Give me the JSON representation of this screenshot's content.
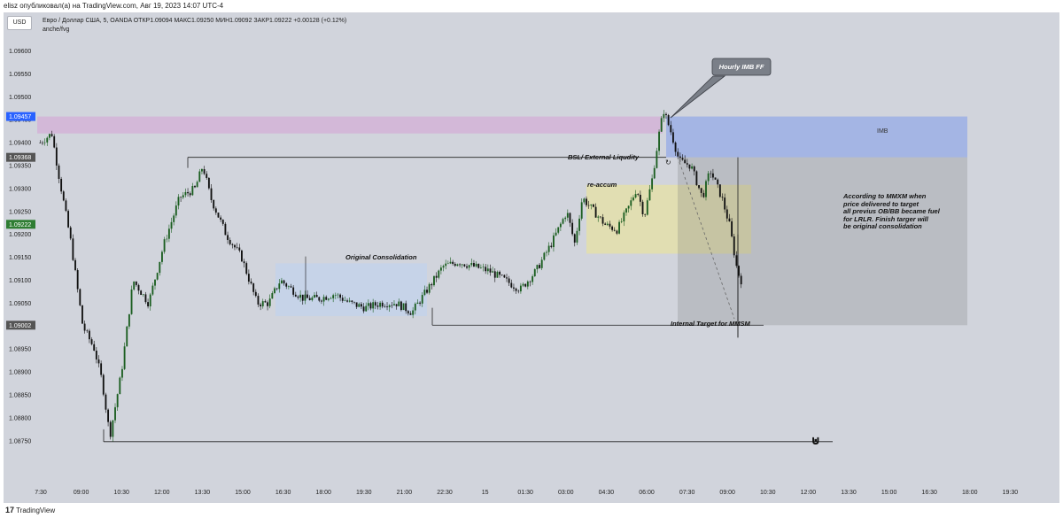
{
  "publisher": "elisz опубликовал(а) на TradingView.com, Авг 19, 2023 14:07 UTC-4",
  "currency_badge": "USD",
  "symbol_line": "Евро / Доллар США, 5, OANDA  ОТКР1.09094  МАКС1.09250  МИН1.09092  ЗАКР1.09222  +0.00128 (+0.12%)",
  "indicator_line": "anche/fvg",
  "brand": "TradingView",
  "colors": {
    "up": "#1b5e20",
    "down": "#111111",
    "price_tag_blue": "#2962ff",
    "price_tag_green": "#2e7d32",
    "price_tag_grey": "#555555"
  },
  "chart_data": {
    "type": "candlestick",
    "timeframe": "5",
    "symbol": "Евро / Доллар США",
    "ylim": [
      1.0872,
      1.0966
    ],
    "y_ticks": [
      "1.09600",
      "1.09550",
      "1.09500",
      "1.09450",
      "1.09400",
      "1.09350",
      "1.09300",
      "1.09250",
      "1.09200",
      "1.09150",
      "1.09100",
      "1.09050",
      "1.09000",
      "1.08950",
      "1.08900",
      "1.08850",
      "1.08800",
      "1.08750"
    ],
    "y_tick_values": [
      1.096,
      1.0955,
      1.095,
      1.0945,
      1.094,
      1.0935,
      1.093,
      1.0925,
      1.092,
      1.0915,
      1.091,
      1.0905,
      1.09,
      1.0895,
      1.089,
      1.0885,
      1.088,
      1.0875
    ],
    "x_ticks": [
      "7:30",
      "09:00",
      "10:30",
      "12:00",
      "13:30",
      "15:00",
      "16:30",
      "18:00",
      "19:30",
      "21:00",
      "22:30",
      "15",
      "01:30",
      "03:00",
      "04:30",
      "06:00",
      "07:30",
      "09:00",
      "10:30",
      "12:00",
      "13:30",
      "15:00",
      "16:30",
      "18:00",
      "19:30"
    ],
    "x_tick_index": [
      0,
      18,
      36,
      54,
      72,
      90,
      108,
      126,
      144,
      162,
      180,
      198,
      216,
      234,
      252,
      270,
      288,
      306,
      324,
      342,
      360,
      378,
      396,
      414,
      432
    ],
    "price_tags": [
      {
        "label": "1.09457",
        "value": 1.09457,
        "color": "#2962ff"
      },
      {
        "label": "1.09368",
        "value": 1.09368,
        "color": "#555555"
      },
      {
        "label": "1.09222",
        "value": 1.09222,
        "color": "#2e7d32"
      },
      {
        "label": "1.09002",
        "value": 1.09002,
        "color": "#555555"
      }
    ],
    "anchors": [
      [
        0,
        1.094
      ],
      [
        3,
        1.0942
      ],
      [
        5,
        1.0932
      ],
      [
        8,
        1.0918
      ],
      [
        11,
        1.09
      ],
      [
        14,
        1.0895
      ],
      [
        16,
        1.0888
      ],
      [
        18,
        1.0876
      ],
      [
        21,
        1.089
      ],
      [
        24,
        1.091
      ],
      [
        28,
        1.0905
      ],
      [
        32,
        1.0918
      ],
      [
        36,
        1.0928
      ],
      [
        40,
        1.093
      ],
      [
        42,
        1.0935
      ],
      [
        44,
        1.0928
      ],
      [
        48,
        1.092
      ],
      [
        52,
        1.0915
      ],
      [
        56,
        1.0905
      ],
      [
        59,
        1.0905
      ],
      [
        62,
        1.091
      ],
      [
        65,
        1.0908
      ],
      [
        68,
        1.0906
      ],
      [
        72,
        1.0906
      ],
      [
        76,
        1.0907
      ],
      [
        80,
        1.0905
      ],
      [
        84,
        1.0904
      ],
      [
        88,
        1.0905
      ],
      [
        92,
        1.0905
      ],
      [
        96,
        1.0903
      ],
      [
        100,
        1.0908
      ],
      [
        104,
        1.0913
      ],
      [
        108,
        1.0914
      ],
      [
        112,
        1.0913
      ],
      [
        116,
        1.0912
      ],
      [
        120,
        1.091
      ],
      [
        124,
        1.0908
      ],
      [
        128,
        1.0912
      ],
      [
        132,
        1.0918
      ],
      [
        136,
        1.0925
      ],
      [
        138,
        1.0918
      ],
      [
        140,
        1.0928
      ],
      [
        143,
        1.0925
      ],
      [
        146,
        1.0922
      ],
      [
        149,
        1.0921
      ],
      [
        152,
        1.0926
      ],
      [
        154,
        1.093
      ],
      [
        156,
        1.0924
      ],
      [
        158,
        1.0932
      ],
      [
        160,
        1.0943
      ],
      [
        161,
        1.0947
      ],
      [
        163,
        1.0942
      ],
      [
        165,
        1.0936
      ],
      [
        168,
        1.0935
      ],
      [
        171,
        1.0928
      ],
      [
        173,
        1.0934
      ],
      [
        176,
        1.0928
      ],
      [
        178,
        1.0922
      ],
      [
        180,
        1.0912
      ],
      [
        181,
        1.091
      ]
    ],
    "zones": [
      {
        "name": "imb-zone-pink",
        "x0": 0,
        "x1": 156,
        "y0": 1.0942,
        "y1": 1.09457,
        "color": "rgba(214,160,214,0.55)"
      },
      {
        "name": "imb-zone-blue",
        "x0": 161,
        "x1": 234,
        "y0": 1.09368,
        "y1": 1.09457,
        "color": "rgba(120,150,235,0.5)"
      },
      {
        "name": "original-consolidation-zone",
        "x0": 72,
        "x1": 112,
        "y0": 1.09022,
        "y1": 1.09137,
        "color": "rgba(190,210,240,0.6)"
      },
      {
        "name": "re-accum-zone",
        "x0": 141,
        "x1": 181,
        "y0": 1.09158,
        "y1": 1.09308,
        "color": "rgba(235,228,150,0.6)"
      },
      {
        "name": "target-grey-zone",
        "x0": 164,
        "x1": 234,
        "y0": 1.09002,
        "y1": 1.09368,
        "color": "rgba(120,120,120,0.25)"
      }
    ],
    "levels": [
      {
        "name": "bsl-level",
        "x0": 42,
        "x1": 161,
        "y": 1.09368
      },
      {
        "name": "internal-target-level",
        "x0": 104,
        "x1": 184,
        "y": 1.09002
      },
      {
        "name": "low-level",
        "x0": 18,
        "x1": 202,
        "y": 1.08748
      }
    ],
    "annotations": {
      "hourly_imb": "Hourly IMB FF",
      "imb": "IMB",
      "bsl": "BSL/ External Liqudity",
      "re_accum": "re-accum",
      "original_consolidation": "Original Consolidation",
      "internal_target": "Internal Target for MMSM",
      "mmxm_note": [
        "According to MMXM when",
        "price delivered to target",
        "all previus OB/BB became fuel",
        "for LRLR. Finish targer will",
        "be original consolidation"
      ]
    }
  }
}
